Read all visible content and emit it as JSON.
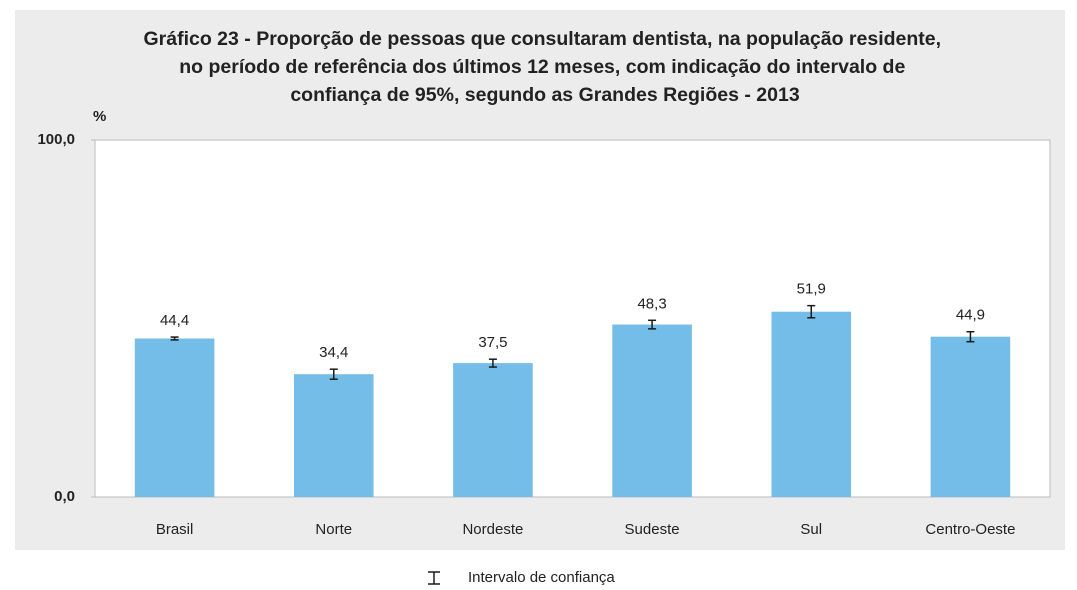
{
  "chart_data": {
    "type": "bar",
    "title": [
      "Gráfico 23 - Proporção de pessoas que consultaram dentista, na população residente,",
      "no período de referência dos últimos 12 meses, com indicação do intervalo de",
      "confiança de 95%, segundo as Grandes Regiões - 2013"
    ],
    "y_label": "%",
    "categories": [
      "Brasil",
      "Norte",
      "Nordeste",
      "Sudeste",
      "Sul",
      "Centro-Oeste"
    ],
    "values": [
      44.4,
      34.4,
      37.5,
      48.3,
      51.9,
      44.9
    ],
    "value_labels": [
      "44,4",
      "34,4",
      "37,5",
      "48,3",
      "51,9",
      "44,9"
    ],
    "errors": [
      0.4,
      1.4,
      1.1,
      1.2,
      1.7,
      1.4
    ],
    "color": "#74bde8",
    "error_color": "#1a1a1a",
    "ylim": [
      0,
      100
    ],
    "yticks": [
      {
        "value": 0,
        "label": "0,0"
      },
      {
        "value": 100,
        "label": "100,0"
      }
    ],
    "legend": "Intervalo de confiança"
  }
}
